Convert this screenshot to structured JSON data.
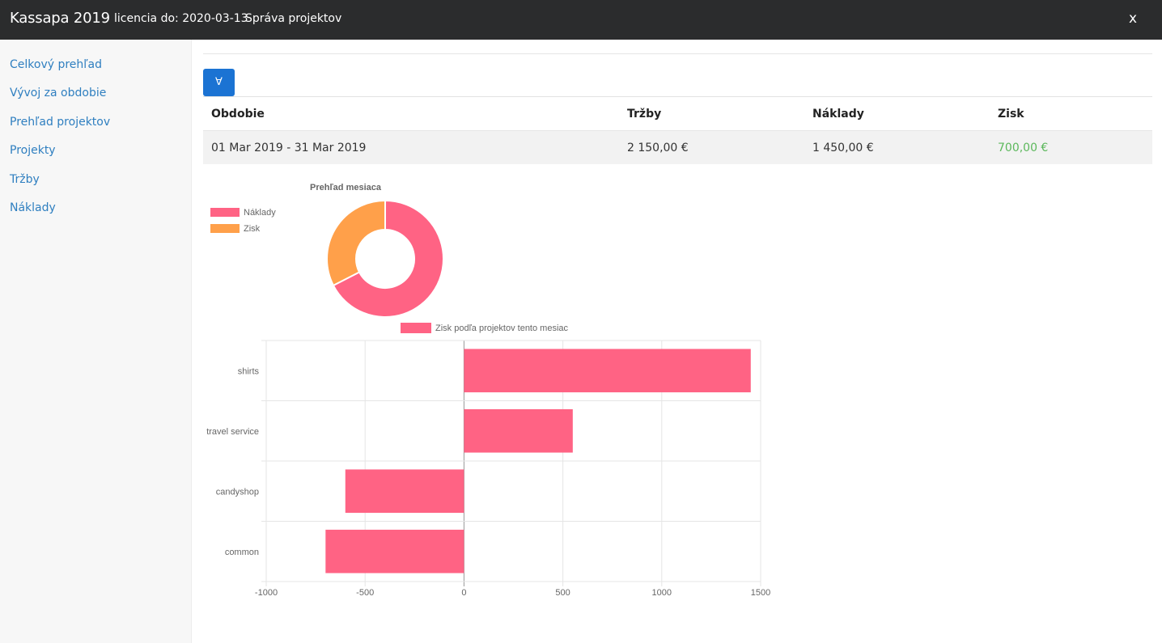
{
  "header": {
    "brand": "Kassapa 2019",
    "license": "licencia do: 2020-03-13",
    "section": "Správa projektov",
    "close_label": "x"
  },
  "sidebar": {
    "items": [
      {
        "label": "Celkový prehľad"
      },
      {
        "label": "Vývoj za obdobie"
      },
      {
        "label": "Prehľad projektov"
      },
      {
        "label": "Projekty"
      },
      {
        "label": "Tržby"
      },
      {
        "label": "Náklady"
      }
    ]
  },
  "toolbar": {
    "filter_icon": "chevron-down-icon",
    "filter_glyph": "∀"
  },
  "table": {
    "headers": [
      "Obdobie",
      "Tržby",
      "Náklady",
      "Zisk"
    ],
    "rows": [
      {
        "period": "01 Mar 2019 - 31 Mar 2019",
        "revenue": "2 150,00 €",
        "costs": "1 450,00 €",
        "profit": "700,00 €"
      }
    ]
  },
  "colors": {
    "topbar": "#2b2c2d",
    "accent": "#1b73d3",
    "link": "#2f7fc0",
    "profit_positive": "#5cb85c",
    "series_pink": "#ff6384",
    "series_orange": "#ffa04a"
  },
  "chart_data": [
    {
      "type": "pie",
      "title": "Prehľad mesiaca",
      "labels": [
        "Náklady",
        "Zisk"
      ],
      "values": [
        1450,
        700
      ],
      "colors": [
        "#ff6384",
        "#ffa04a"
      ],
      "legend": "left"
    },
    {
      "type": "bar",
      "orientation": "horizontal",
      "categories": [
        "shirts",
        "travel service",
        "candyshop",
        "common"
      ],
      "series": [
        {
          "name": "Zisk podľa projektov tento mesiac",
          "values": [
            1450,
            550,
            -600,
            -700
          ],
          "color": "#ff6384"
        }
      ],
      "xlim": [
        -1000,
        1500
      ],
      "xticks": [
        "-1000",
        "-500",
        "0",
        "500",
        "1000",
        "1500"
      ],
      "grid": true,
      "legend": "top"
    }
  ]
}
